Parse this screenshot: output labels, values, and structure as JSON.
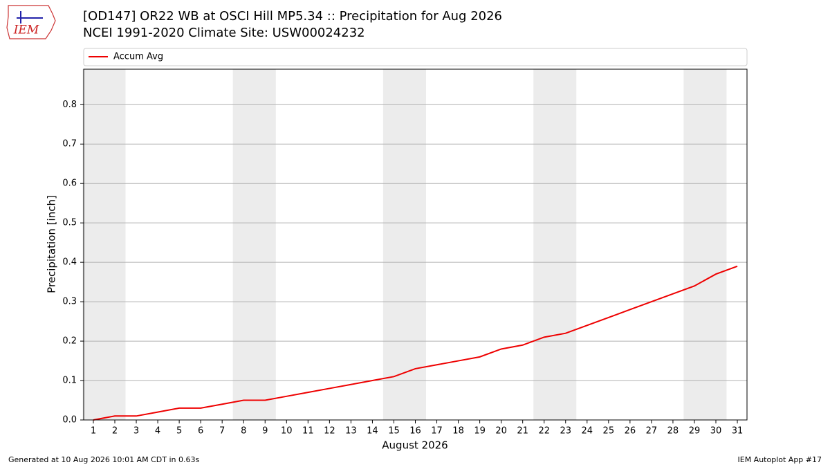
{
  "logo": "IEM",
  "footer_left": "Generated at 10 Aug 2026 10:01 AM CDT in 0.63s",
  "footer_right": "IEM Autoplot App #17",
  "chart_data": {
    "type": "line",
    "title": "[OD147] OR22 WB at OSCI Hill MP5.34  :: Precipitation for Aug 2026",
    "subtitle": "NCEI 1991-2020 Climate Site: USW00024232",
    "x_label": "August 2026",
    "y_label": "Precipitation [inch]",
    "x": [
      1,
      2,
      3,
      4,
      5,
      6,
      7,
      8,
      9,
      10,
      11,
      12,
      13,
      14,
      15,
      16,
      17,
      18,
      19,
      20,
      21,
      22,
      23,
      24,
      25,
      26,
      27,
      28,
      29,
      30,
      31
    ],
    "series": [
      {
        "name": "Accum Avg",
        "color": "#ee0000",
        "values": [
          0.0,
          0.01,
          0.01,
          0.02,
          0.03,
          0.03,
          0.04,
          0.05,
          0.05,
          0.06,
          0.07,
          0.08,
          0.09,
          0.1,
          0.11,
          0.13,
          0.14,
          0.15,
          0.16,
          0.18,
          0.19,
          0.21,
          0.22,
          0.24,
          0.26,
          0.28,
          0.3,
          0.32,
          0.34,
          0.37,
          0.39
        ]
      }
    ],
    "shaded_x": [
      [
        0.5,
        2.5
      ],
      [
        7.5,
        9.5
      ],
      [
        14.5,
        16.5
      ],
      [
        21.5,
        23.5
      ],
      [
        28.5,
        30.5
      ]
    ],
    "shade_color": "#ececec",
    "xlim": [
      0.55,
      31.45
    ],
    "ylim": [
      0,
      0.89
    ],
    "xticks": [
      1,
      2,
      3,
      4,
      5,
      6,
      7,
      8,
      9,
      10,
      11,
      12,
      13,
      14,
      15,
      16,
      17,
      18,
      19,
      20,
      21,
      22,
      23,
      24,
      25,
      26,
      27,
      28,
      29,
      30,
      31
    ],
    "yticks": [
      {
        "value": 0,
        "label": "0.0"
      },
      0.1,
      0.2,
      0.3,
      0.4,
      0.5,
      0.6,
      0.7,
      0.8
    ],
    "grid": true,
    "legend": "top"
  }
}
